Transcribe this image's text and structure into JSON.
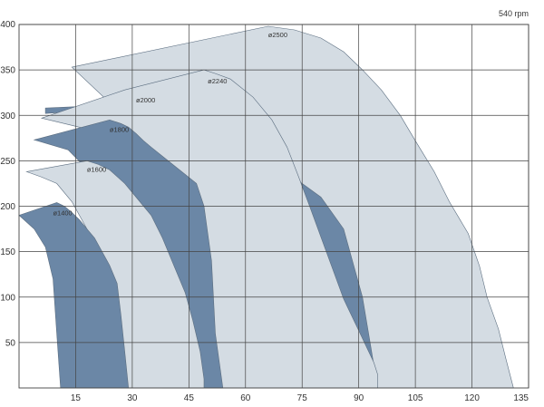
{
  "chart_data": {
    "type": "area",
    "title": "",
    "xlabel": "",
    "ylabel": "",
    "note": "540 rpm",
    "xlim": [
      0,
      135
    ],
    "ylim": [
      0,
      400
    ],
    "x_ticks": [
      15,
      30,
      45,
      60,
      75,
      90,
      105,
      120,
      135
    ],
    "y_ticks": [
      50,
      100,
      150,
      200,
      250,
      300,
      350,
      400
    ],
    "grid": true,
    "legend": "none",
    "colors": {
      "light": "#d4dce3",
      "dark": "#6b87a6",
      "outline": "#5c6e80"
    },
    "series": [
      {
        "name": "ø2500",
        "style": "light",
        "label_at": [
          66,
          386
        ],
        "polygon": [
          [
            14,
            353
          ],
          [
            66,
            398
          ],
          [
            73,
            394
          ],
          [
            80,
            385
          ],
          [
            86,
            370
          ],
          [
            91,
            350
          ],
          [
            96,
            328
          ],
          [
            101,
            300
          ],
          [
            105,
            272
          ],
          [
            110,
            238
          ],
          [
            114,
            205
          ],
          [
            119,
            170
          ],
          [
            122,
            134
          ],
          [
            124,
            100
          ],
          [
            127,
            65
          ],
          [
            129,
            32
          ],
          [
            131,
            0
          ],
          [
            91,
            0
          ],
          [
            85,
            55
          ],
          [
            76,
            105
          ],
          [
            66,
            158
          ],
          [
            55,
            215
          ],
          [
            46,
            258
          ],
          [
            40,
            282
          ],
          [
            36,
            296
          ],
          [
            33,
            302
          ],
          [
            25,
            310
          ],
          [
            14,
            353
          ]
        ]
      },
      {
        "name": "ø2240",
        "style": "dark",
        "label_at": [
          50,
          335
        ],
        "polygon": [
          [
            7,
            308
          ],
          [
            7,
            302
          ],
          [
            37,
            310
          ],
          [
            40,
            315
          ],
          [
            43,
            318
          ],
          [
            46,
            315
          ],
          [
            51,
            300
          ],
          [
            55,
            285
          ],
          [
            60,
            270
          ],
          [
            65,
            255
          ],
          [
            70,
            240
          ],
          [
            75,
            225
          ],
          [
            80,
            210
          ],
          [
            86,
            175
          ],
          [
            91,
            100
          ],
          [
            93,
            50
          ],
          [
            95,
            0
          ],
          [
            72,
            0
          ],
          [
            68,
            60
          ],
          [
            60,
            115
          ],
          [
            50,
            185
          ],
          [
            45,
            225
          ],
          [
            41,
            255
          ],
          [
            38,
            275
          ],
          [
            35,
            291
          ],
          [
            33,
            300
          ],
          [
            30,
            305
          ],
          [
            18,
            310
          ],
          [
            7,
            308
          ]
        ]
      },
      {
        "name": "ø2000",
        "style": "light",
        "label_at": [
          31,
          314
        ],
        "polygon": [
          [
            6,
            297
          ],
          [
            28,
            328
          ],
          [
            49,
            350
          ],
          [
            52,
            346
          ],
          [
            56,
            340
          ],
          [
            62,
            320
          ],
          [
            67,
            295
          ],
          [
            71,
            265
          ],
          [
            74,
            233
          ],
          [
            77,
            200
          ],
          [
            80,
            166
          ],
          [
            83,
            132
          ],
          [
            86,
            98
          ],
          [
            90,
            63
          ],
          [
            94,
            28
          ],
          [
            95,
            15
          ],
          [
            95,
            0
          ],
          [
            45,
            0
          ],
          [
            40,
            95
          ],
          [
            32,
            185
          ],
          [
            24,
            255
          ],
          [
            21,
            275
          ],
          [
            18,
            285
          ],
          [
            10,
            293
          ],
          [
            6,
            297
          ]
        ]
      },
      {
        "name": "ø1800",
        "style": "dark",
        "label_at": [
          24,
          282
        ],
        "polygon": [
          [
            4,
            273
          ],
          [
            24,
            295
          ],
          [
            27,
            291
          ],
          [
            29,
            287
          ],
          [
            31,
            280
          ],
          [
            33,
            272
          ],
          [
            35,
            265
          ],
          [
            38,
            255
          ],
          [
            41,
            245
          ],
          [
            44,
            235
          ],
          [
            47,
            225
          ],
          [
            49,
            200
          ],
          [
            51,
            140
          ],
          [
            52,
            60
          ],
          [
            54,
            0
          ],
          [
            38,
            0
          ],
          [
            36,
            70
          ],
          [
            33,
            115
          ],
          [
            29,
            160
          ],
          [
            26,
            190
          ],
          [
            24,
            215
          ],
          [
            21,
            230
          ],
          [
            17,
            245
          ],
          [
            13,
            262
          ],
          [
            4,
            273
          ]
        ]
      },
      {
        "name": "ø1600",
        "style": "light",
        "label_at": [
          18,
          238
        ],
        "polygon": [
          [
            2,
            238
          ],
          [
            18,
            250
          ],
          [
            21,
            246
          ],
          [
            24,
            240
          ],
          [
            28,
            225
          ],
          [
            31,
            210
          ],
          [
            35,
            190
          ],
          [
            38,
            165
          ],
          [
            41,
            135
          ],
          [
            44,
            105
          ],
          [
            46,
            75
          ],
          [
            48,
            40
          ],
          [
            49,
            10
          ],
          [
            49,
            0
          ],
          [
            27,
            0
          ],
          [
            25,
            55
          ],
          [
            22,
            120
          ],
          [
            18,
            175
          ],
          [
            14,
            205
          ],
          [
            10,
            225
          ],
          [
            6,
            232
          ],
          [
            2,
            238
          ]
        ]
      },
      {
        "name": "ø1400",
        "style": "dark",
        "label_at": [
          9,
          190
        ],
        "polygon": [
          [
            0,
            190
          ],
          [
            10,
            204
          ],
          [
            12,
            200
          ],
          [
            14,
            193
          ],
          [
            16,
            185
          ],
          [
            18,
            175
          ],
          [
            20,
            165
          ],
          [
            22,
            150
          ],
          [
            24,
            135
          ],
          [
            26,
            115
          ],
          [
            27,
            80
          ],
          [
            28,
            40
          ],
          [
            29,
            0
          ],
          [
            11,
            0
          ],
          [
            10,
            60
          ],
          [
            9,
            120
          ],
          [
            7,
            155
          ],
          [
            4,
            175
          ],
          [
            0,
            190
          ]
        ]
      }
    ]
  }
}
